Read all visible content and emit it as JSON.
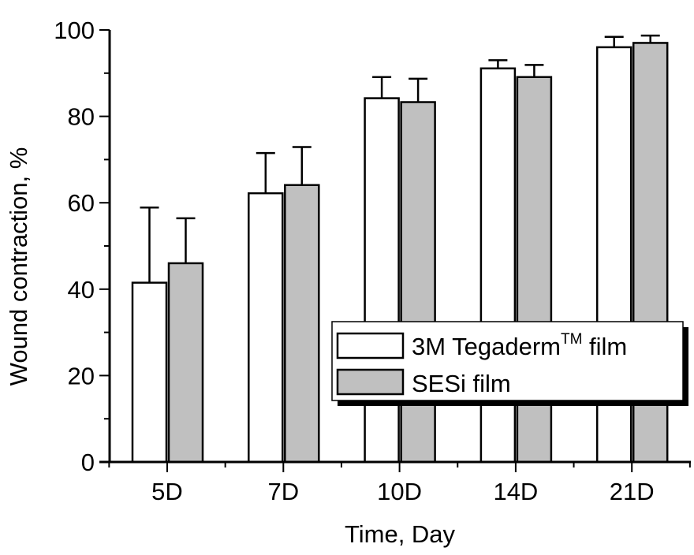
{
  "chart_data": {
    "type": "bar",
    "title": "",
    "xlabel": "Time, Day",
    "ylabel": "Wound contraction, %",
    "categories": [
      "5D",
      "7D",
      "10D",
      "14D",
      "21D"
    ],
    "ylim": [
      0,
      100
    ],
    "yticks": [
      0,
      20,
      40,
      60,
      80,
      100
    ],
    "ytick_labels": [
      "0",
      "20",
      "40",
      "60",
      "80",
      "100"
    ],
    "y_minor_step": 10,
    "grid": false,
    "legend_position": "bottom-right",
    "series": [
      {
        "name": "3M Tegaderm™ film",
        "label_main": "3M Tegaderm",
        "label_sup": "TM",
        "label_tail": " film",
        "color": "#ffffff",
        "values": [
          41.5,
          62.2,
          84.2,
          91.1,
          96.0
        ],
        "errors": [
          17.4,
          9.3,
          4.9,
          1.9,
          2.4
        ]
      },
      {
        "name": "SESi film",
        "label_main": "SESi film",
        "color": "#c0c0c0",
        "values": [
          46.0,
          64.1,
          83.3,
          89.1,
          97.0
        ],
        "errors": [
          10.4,
          8.8,
          5.4,
          2.8,
          1.7
        ]
      }
    ]
  }
}
